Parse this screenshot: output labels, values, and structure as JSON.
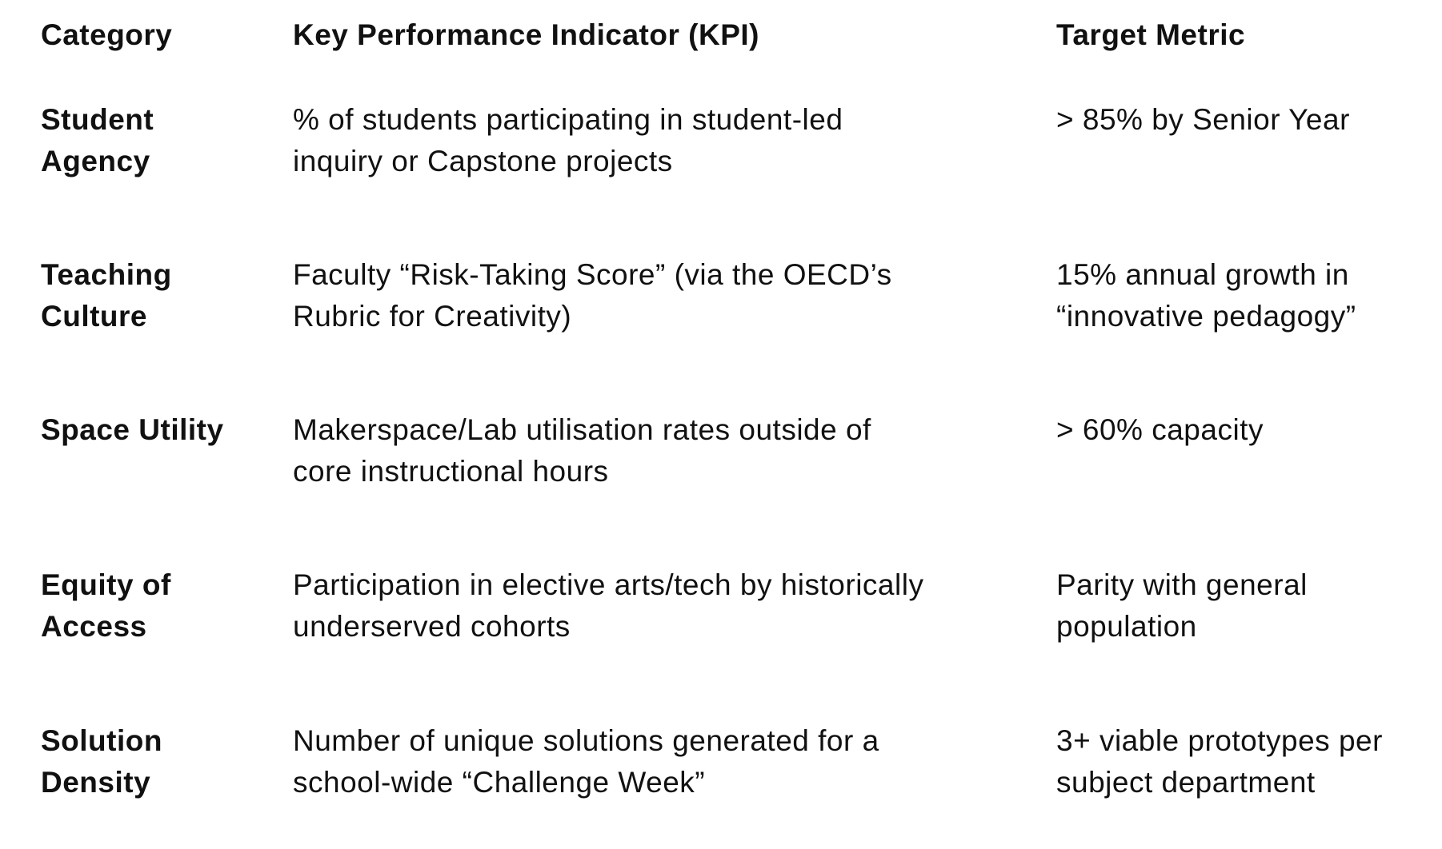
{
  "table": {
    "header": [
      "Category",
      "Key Performance Indicator (KPI)",
      "Target Metric"
    ],
    "rows": [
      [
        [
          "Student",
          "Agency"
        ],
        [
          "% of students participating in student-led",
          "inquiry or Capstone projects"
        ],
        [
          "> 85% by Senior Year"
        ]
      ],
      [
        [
          "Teaching",
          "Culture"
        ],
        [
          "Faculty “Risk-Taking Score” (via the OECD’s",
          "Rubric for Creativity)"
        ],
        [
          "15% annual growth in",
          "“innovative pedagogy”"
        ]
      ],
      [
        [
          "Space Utility"
        ],
        [
          "Makerspace/Lab utilisation rates outside of",
          "core instructional hours"
        ],
        [
          "> 60% capacity"
        ]
      ],
      [
        [
          "Equity of",
          "Access"
        ],
        [
          "Participation in elective arts/tech by historically",
          "underserved cohorts"
        ],
        [
          "Parity with general",
          "population"
        ]
      ],
      [
        [
          "Solution",
          "Density"
        ],
        [
          "Number of unique solutions generated for a",
          "school-wide “Challenge Week”"
        ],
        [
          "3+ viable prototypes per",
          "subject department"
        ]
      ]
    ]
  }
}
